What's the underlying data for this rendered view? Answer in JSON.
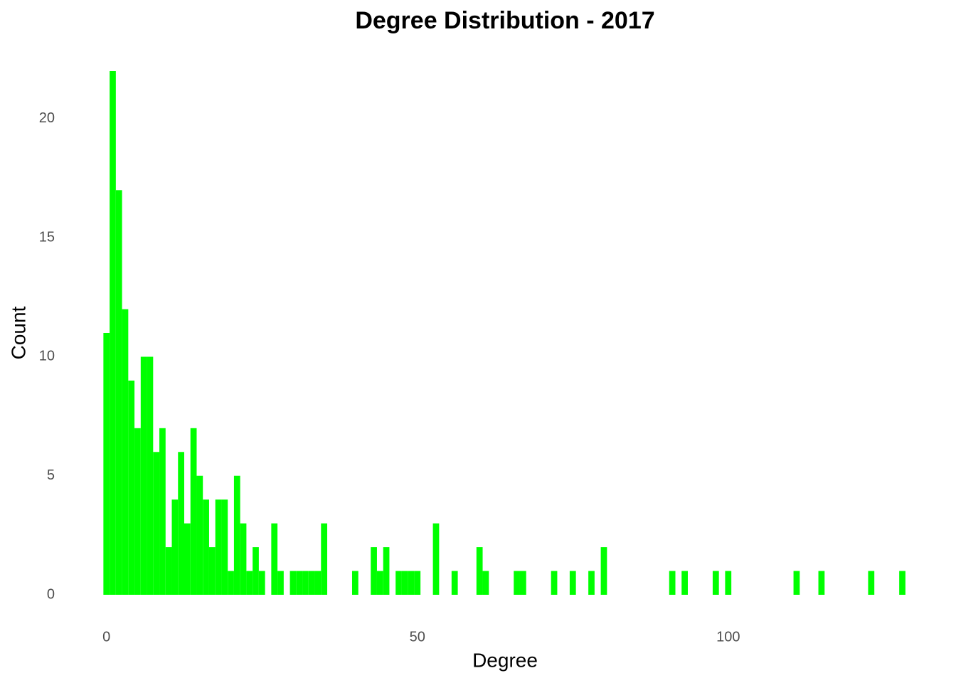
{
  "chart_data": {
    "type": "histogram",
    "title": "Degree Distribution - 2017",
    "x_label": "Degree",
    "y_label": "Count",
    "color": "#00ff00",
    "grid": false,
    "bins": [
      -0.5,
      0.5,
      1.5,
      2.5,
      3.5,
      4.5,
      5.5,
      6.5,
      7.5,
      8.5,
      9.5,
      10.5,
      11.5,
      12.5,
      13.5,
      14.5,
      15.5,
      16.5,
      17.5,
      18.5,
      19.5,
      20.5,
      21.5,
      22.5,
      23.5,
      24.5,
      25.5,
      26.5,
      27.5,
      28.5,
      29.5,
      30.5,
      31.5,
      32.5,
      33.5,
      34.5,
      35.5,
      36.5,
      37.5,
      38.5,
      39.5,
      40.5,
      41.5,
      42.5,
      43.5,
      44.5,
      45.5,
      46.5,
      47.5,
      48.5,
      49.5,
      50.5,
      51.5,
      52.5,
      53.5,
      54.5,
      55.5,
      56.5,
      57.5,
      58.5,
      59.5,
      60.5,
      61.5,
      62.5,
      63.5,
      64.5,
      65.5,
      66.5,
      67.5,
      68.5,
      69.5,
      70.5,
      71.5,
      72.5,
      73.5,
      74.5,
      75.5,
      76.5,
      77.5,
      78.5,
      79.5,
      80.5,
      81.5,
      82.5,
      83.5,
      84.5,
      85.5,
      86.5,
      87.5,
      88.5,
      89.5,
      90.5,
      91.5,
      92.5,
      93.5,
      94.5,
      95.5,
      96.5,
      97.5,
      98.5,
      99.5,
      100.5,
      101.5,
      102.5,
      103.5,
      104.5,
      105.5,
      106.5,
      107.5,
      108.5,
      109.5,
      110.5,
      111.5,
      112.5,
      113.5,
      114.5,
      115.5,
      116.5,
      117.5,
      118.5,
      119.5,
      120.5,
      121.5,
      122.5,
      123.5,
      124.5,
      125.5,
      126.5,
      127.5,
      128.5
    ],
    "values": [
      11,
      22,
      17,
      12,
      9,
      7,
      10,
      10,
      6,
      7,
      2,
      4,
      6,
      3,
      7,
      5,
      4,
      2,
      4,
      4,
      1,
      5,
      3,
      1,
      2,
      1,
      0,
      3,
      1,
      0,
      1,
      1,
      1,
      1,
      1,
      3,
      0,
      0,
      0,
      0,
      1,
      0,
      0,
      2,
      1,
      2,
      0,
      1,
      1,
      1,
      1,
      0,
      0,
      3,
      0,
      0,
      1,
      0,
      0,
      0,
      2,
      1,
      0,
      0,
      0,
      0,
      1,
      1,
      0,
      0,
      0,
      0,
      1,
      0,
      0,
      1,
      0,
      0,
      1,
      0,
      2,
      0,
      0,
      0,
      0,
      0,
      0,
      0,
      0,
      0,
      0,
      1,
      0,
      1,
      0,
      0,
      0,
      0,
      1,
      0,
      1,
      0,
      0,
      0,
      0,
      0,
      0,
      0,
      0,
      0,
      0,
      1,
      0,
      0,
      0,
      1,
      0,
      0,
      0,
      0,
      0,
      0,
      0,
      1,
      0,
      0,
      0,
      0,
      1
    ],
    "xlim": [
      -1,
      130
    ],
    "xticks": [
      0,
      50,
      100
    ],
    "ylim": [
      0,
      22
    ],
    "yticks": [
      0,
      5,
      10,
      15,
      20
    ]
  }
}
